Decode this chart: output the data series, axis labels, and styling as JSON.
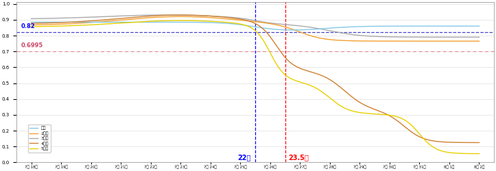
{
  "x_labels": [
    "7월 18일",
    "7월 19일",
    "7월 20일",
    "7월 21일",
    "7월 22일",
    "7월 23일",
    "7월 24일",
    "7월 25일",
    "7월 26일",
    "7월 27일",
    "7월 28일",
    "7월 29일",
    "7월 30일",
    "7월 31일",
    "8월 1일",
    "8월 2일"
  ],
  "ylim": [
    0,
    1.0
  ],
  "yticks": [
    0,
    0.1,
    0.2,
    0.3,
    0.4,
    0.5,
    0.6,
    0.7,
    0.8,
    0.9,
    1
  ],
  "hline_blue": 0.82,
  "hline_pink": 0.6995,
  "vline_blue_idx": 7.5,
  "vline_red_idx": 8.5,
  "vline_blue_label": "22일",
  "vline_red_label": "23.5일",
  "legend_labels": [
    "대화",
    "2주간",
    "3주간",
    "4주간",
    "5주간"
  ],
  "colors": {
    "대화": "#85c8e8",
    "2주간": "#f4a030",
    "3주간": "#aaaaaa",
    "4주간": "#d08030",
    "5주간": "#e8d000"
  },
  "background_color": "#ffffff",
  "grid_color": "#e0e0e0"
}
